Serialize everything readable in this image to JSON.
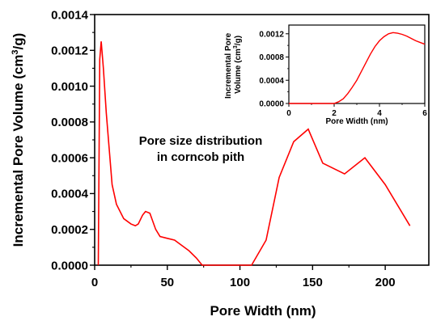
{
  "chart_data": [
    {
      "type": "line",
      "xlabel": "Pore Width (nm)",
      "ylabel_main": "Incremental Pore Volume (cm",
      "ylabel_sup": "3",
      "ylabel_end": "/g)",
      "xlim": [
        0,
        230
      ],
      "ylim": [
        0,
        0.0014
      ],
      "xticks": [
        0,
        50,
        100,
        150,
        200
      ],
      "yticks": [
        0.0,
        0.0002,
        0.0004,
        0.0006,
        0.0008,
        0.001,
        0.0012,
        0.0014
      ],
      "ytick_labels": [
        "0.0000",
        "0.0002",
        "0.0004",
        "0.0006",
        "0.0008",
        "0.0010",
        "0.0012",
        "0.0014"
      ],
      "annotation_line1": "Pore size distribution",
      "annotation_line2": "in corncob pith",
      "line_color": "#ff0000",
      "series": [
        {
          "x": [
            2.5,
            3.5,
            4.5,
            6,
            8,
            10,
            12,
            15,
            20,
            25,
            28,
            30,
            33,
            35,
            38,
            42,
            45,
            50,
            55,
            60,
            65,
            70,
            74,
            80,
            90,
            100,
            108,
            118,
            127,
            137,
            147,
            157,
            172,
            186,
            200,
            217
          ],
          "y": [
            0.0,
            0.00115,
            0.00125,
            0.0011,
            0.00085,
            0.00065,
            0.00045,
            0.00034,
            0.00026,
            0.00023,
            0.00022,
            0.00023,
            0.00028,
            0.0003,
            0.00029,
            0.0002,
            0.00016,
            0.00015,
            0.00014,
            0.00011,
            8e-05,
            4e-05,
            0.0,
            0.0,
            0.0,
            0.0,
            0.0,
            0.00014,
            0.00049,
            0.00069,
            0.00076,
            0.00057,
            0.00051,
            0.0006,
            0.00045,
            0.00022
          ]
        }
      ]
    },
    {
      "type": "line",
      "xlabel": "Pore Width (nm)",
      "ylabel_line1": "Incremental Pore",
      "ylabel_line2_main": "Volume (cm",
      "ylabel_line2_sup": "3",
      "ylabel_line2_end": "/g)",
      "xlim": [
        0,
        6
      ],
      "ylim": [
        0,
        0.00135
      ],
      "xticks": [
        0,
        2,
        4,
        6
      ],
      "yticks": [
        0.0,
        0.0004,
        0.0008,
        0.0012
      ],
      "ytick_labels": [
        "0.0000",
        "0.0004",
        "0.0008",
        "0.0012"
      ],
      "line_color": "#ff0000",
      "series": [
        {
          "x": [
            0,
            0.5,
            1,
            1.5,
            2.0,
            2.2,
            2.4,
            2.6,
            2.8,
            3.0,
            3.2,
            3.4,
            3.6,
            3.8,
            4.0,
            4.2,
            4.4,
            4.6,
            4.8,
            5.0,
            5.2,
            5.4,
            5.6,
            5.8,
            6.0
          ],
          "y": [
            0,
            0,
            0,
            0,
            0,
            3e-05,
            8e-05,
            0.00017,
            0.00028,
            0.0004,
            0.00055,
            0.0007,
            0.00085,
            0.00098,
            0.00108,
            0.00115,
            0.0012,
            0.00122,
            0.00121,
            0.00119,
            0.00116,
            0.00112,
            0.00108,
            0.00105,
            0.00102
          ]
        }
      ]
    }
  ]
}
